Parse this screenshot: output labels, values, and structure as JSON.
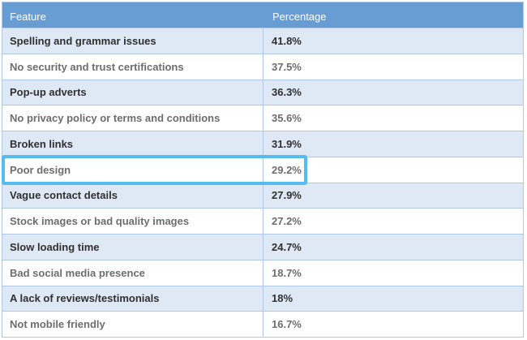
{
  "chart_data": {
    "type": "table",
    "columns": [
      "Feature",
      "Percentage"
    ],
    "rows": [
      {
        "feature": "Spelling and grammar issues",
        "percentage": "41.8%"
      },
      {
        "feature": "No security and trust certifications",
        "percentage": "37.5%"
      },
      {
        "feature": "Pop-up adverts",
        "percentage": "36.3%"
      },
      {
        "feature": "No privacy policy or terms and conditions",
        "percentage": "35.6%"
      },
      {
        "feature": "Broken links",
        "percentage": "31.9%"
      },
      {
        "feature": "Poor design",
        "percentage": "29.2%"
      },
      {
        "feature": "Vague contact details",
        "percentage": "27.9%"
      },
      {
        "feature": "Stock images or bad quality images",
        "percentage": "27.2%"
      },
      {
        "feature": "Slow loading time",
        "percentage": "24.7%"
      },
      {
        "feature": "Bad social media presence",
        "percentage": "18.7%"
      },
      {
        "feature": "A lack of reviews/testimonials",
        "percentage": "18%"
      },
      {
        "feature": "Not mobile friendly",
        "percentage": "16.7%"
      }
    ],
    "values": [
      41.8,
      37.5,
      36.3,
      35.6,
      31.9,
      29.2,
      27.9,
      27.2,
      24.7,
      18.7,
      18,
      16.7
    ],
    "highlighted_row": "Poor design",
    "annotations": [
      "Row 'Poor design' (29.2%) is outlined with a bright blue highlight box"
    ]
  },
  "colors": {
    "header_bg": "#689DD3",
    "header_text": "#FFFFFF",
    "row_shaded": "#DFE9F5",
    "line": "#AFC8E6",
    "text_dark": "#303030",
    "text_gray": "#6D6D6D",
    "highlight": "#55BCEF"
  }
}
